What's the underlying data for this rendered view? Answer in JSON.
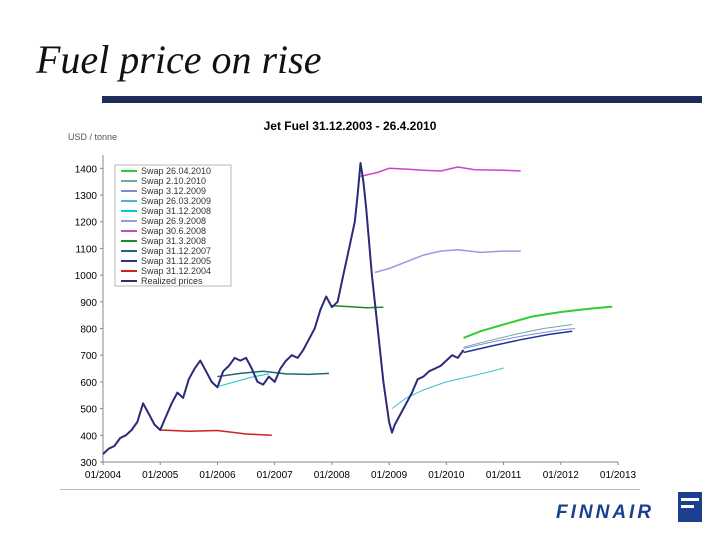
{
  "slide": {
    "title": "Fuel price on rise"
  },
  "brand": {
    "logo_text": "FINNAIR",
    "accent": "#1c2d5a",
    "logo_color": "#1c3f8f"
  },
  "chart_data": {
    "type": "line",
    "title": "Jet Fuel 31.12.2003 - 26.4.2010",
    "ylabel": "USD / tonne",
    "xlabel": "",
    "ylim": [
      300,
      1450
    ],
    "xlim": [
      2004.0,
      2013.0
    ],
    "yticks": [
      300,
      400,
      500,
      600,
      700,
      800,
      900,
      1000,
      1100,
      1200,
      1300,
      1400
    ],
    "xticks": [
      {
        "v": 2004,
        "label": "01/2004"
      },
      {
        "v": 2005,
        "label": "01/2005"
      },
      {
        "v": 2006,
        "label": "01/2006"
      },
      {
        "v": 2007,
        "label": "01/2007"
      },
      {
        "v": 2008,
        "label": "01/2008"
      },
      {
        "v": 2009,
        "label": "01/2009"
      },
      {
        "v": 2010,
        "label": "01/2010"
      },
      {
        "v": 2011,
        "label": "01/2011"
      },
      {
        "v": 2012,
        "label": "01/2012"
      },
      {
        "v": 2013,
        "label": "01/2013"
      }
    ],
    "grid": false,
    "legend_position": "top-left",
    "series": [
      {
        "name": "Swap 26.04.2010",
        "color": "#33cc33",
        "width": 2,
        "x": [
          2010.3,
          2010.6,
          2011.0,
          2011.5,
          2012.0,
          2012.5,
          2012.9
        ],
        "y": [
          765,
          790,
          815,
          845,
          862,
          874,
          882
        ]
      },
      {
        "name": "Swap 2.10.2010",
        "color": "#66aaaa",
        "width": 1,
        "x": [
          2010.3,
          2010.7,
          2011.2,
          2011.7,
          2012.2
        ],
        "y": [
          730,
          752,
          778,
          800,
          815
        ]
      },
      {
        "name": "Swap 3.12.2009",
        "color": "#8888cc",
        "width": 1,
        "x": [
          2010.3,
          2010.8,
          2011.4,
          2012.0,
          2012.25
        ],
        "y": [
          725,
          750,
          775,
          795,
          800
        ]
      },
      {
        "name": "Swap 26.03.2009",
        "color": "#44bbcc",
        "width": 1,
        "x": [
          2009.05,
          2009.3,
          2009.6,
          2010.0,
          2010.4,
          2010.8,
          2011.0
        ],
        "y": [
          500,
          540,
          570,
          600,
          620,
          640,
          652
        ]
      },
      {
        "name": "Swap 31.12.2008",
        "color": "#00cccc",
        "width": 1,
        "x": [
          2006.0,
          2006.3,
          2006.6,
          2006.9
        ],
        "y": [
          582,
          600,
          618,
          630
        ]
      },
      {
        "name": "Swap 26.9.2008",
        "color": "#9999dd",
        "width": 1.5,
        "x": [
          2008.75,
          2009.0,
          2009.3,
          2009.6,
          2009.9,
          2010.2,
          2010.6,
          2011.0,
          2011.3
        ],
        "y": [
          1010,
          1025,
          1050,
          1075,
          1090,
          1095,
          1085,
          1090,
          1090
        ]
      },
      {
        "name": "Swap 30.6.2008",
        "color": "#cc44cc",
        "width": 1.5,
        "x": [
          2008.5,
          2008.8,
          2009.0,
          2009.3,
          2009.6,
          2009.9,
          2010.2,
          2010.5,
          2011.0,
          2011.3
        ],
        "y": [
          1370,
          1385,
          1400,
          1397,
          1393,
          1390,
          1405,
          1395,
          1393,
          1390
        ]
      },
      {
        "name": "Swap 31.3.2008",
        "color": "#228822",
        "width": 1.5,
        "x": [
          2008.0,
          2008.3,
          2008.6,
          2008.9
        ],
        "y": [
          885,
          882,
          878,
          880
        ]
      },
      {
        "name": "Swap 31.12.2007",
        "color": "#226677",
        "width": 1.5,
        "x": [
          2006.0,
          2006.4,
          2006.8,
          2007.2,
          2007.6,
          2007.95
        ],
        "y": [
          620,
          632,
          640,
          630,
          628,
          632
        ]
      },
      {
        "name": "Swap 31.12.2005",
        "color": "#223399",
        "width": 1.5,
        "x": [
          2010.3,
          2010.8,
          2011.3,
          2011.8,
          2012.2
        ],
        "y": [
          710,
          735,
          758,
          778,
          790
        ]
      },
      {
        "name": "Swap 31.12.2004",
        "color": "#cc2222",
        "width": 1.5,
        "x": [
          2005.0,
          2005.5,
          2006.0,
          2006.5,
          2006.95
        ],
        "y": [
          420,
          415,
          418,
          405,
          400
        ]
      },
      {
        "name": "Realized prices",
        "color": "#2b2b7a",
        "width": 2,
        "x": [
          2004.0,
          2004.1,
          2004.2,
          2004.3,
          2004.4,
          2004.5,
          2004.6,
          2004.7,
          2004.8,
          2004.9,
          2005.0,
          2005.1,
          2005.2,
          2005.3,
          2005.4,
          2005.5,
          2005.6,
          2005.7,
          2005.8,
          2005.9,
          2006.0,
          2006.1,
          2006.2,
          2006.3,
          2006.4,
          2006.5,
          2006.6,
          2006.7,
          2006.8,
          2006.9,
          2007.0,
          2007.1,
          2007.2,
          2007.3,
          2007.4,
          2007.5,
          2007.6,
          2007.7,
          2007.8,
          2007.9,
          2008.0,
          2008.1,
          2008.2,
          2008.3,
          2008.4,
          2008.45,
          2008.5,
          2008.55,
          2008.6,
          2008.7,
          2008.8,
          2008.9,
          2009.0,
          2009.05,
          2009.1,
          2009.2,
          2009.3,
          2009.4,
          2009.5,
          2009.6,
          2009.7,
          2009.8,
          2009.9,
          2010.0,
          2010.1,
          2010.2,
          2010.3
        ],
        "y": [
          330,
          350,
          360,
          390,
          400,
          420,
          450,
          520,
          480,
          440,
          420,
          470,
          520,
          560,
          540,
          610,
          650,
          680,
          640,
          600,
          580,
          640,
          660,
          690,
          680,
          690,
          650,
          600,
          590,
          620,
          600,
          650,
          680,
          700,
          690,
          720,
          760,
          800,
          870,
          920,
          880,
          900,
          1000,
          1100,
          1200,
          1300,
          1420,
          1350,
          1250,
          1000,
          800,
          600,
          450,
          410,
          440,
          480,
          520,
          560,
          610,
          620,
          640,
          650,
          660,
          680,
          700,
          690,
          720
        ]
      }
    ]
  }
}
